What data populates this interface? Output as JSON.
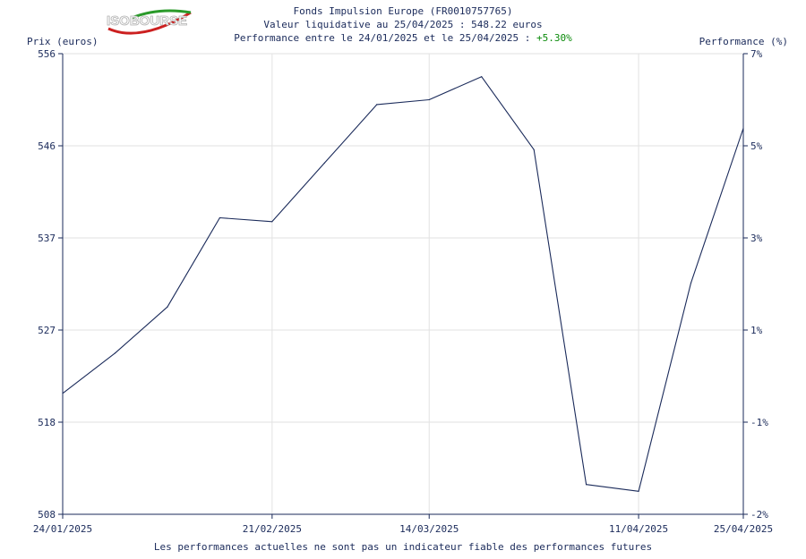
{
  "header": {
    "fund_name": "Fonds Impulsion Europe (FR0010757765)",
    "nav_text": "Valeur liquidative au 25/04/2025 : 548.22 euros",
    "perf_prefix": "Performance entre le 24/01/2025 et le 25/04/2025 : ",
    "perf_value": "+5.30%",
    "perf_color": "#0a8a0a"
  },
  "logo": {
    "text": "ISOBOURSE"
  },
  "footer": {
    "disclaimer": "Les performances actuelles ne sont pas un indicateur fiable des performances futures"
  },
  "chart_data": {
    "type": "line",
    "ylabel_left": "Prix (euros)",
    "ylabel_right": "Performance (%)",
    "x_ticks": [
      "24/01/2025",
      "21/02/2025",
      "14/03/2025",
      "11/04/2025",
      "25/04/2025"
    ],
    "y_left_ticks": [
      "556",
      "546",
      "537",
      "527",
      "518",
      "508"
    ],
    "y_right_ticks": [
      "7%",
      "5%",
      "3%",
      "1%",
      "-1%",
      "-2%"
    ],
    "ylim": [
      508,
      556
    ],
    "xlim": [
      "2025-01-24",
      "2025-04-25"
    ],
    "grid": true,
    "line_color": "#1a2a5a",
    "series": [
      {
        "x": [
          "2025-01-24",
          "2025-01-31",
          "2025-02-07",
          "2025-02-14",
          "2025-02-21",
          "2025-02-28",
          "2025-03-07",
          "2025-03-14",
          "2025-03-21",
          "2025-03-28",
          "2025-04-04",
          "2025-04-11",
          "2025-04-18",
          "2025-04-25"
        ],
        "values": [
          520.6,
          524.8,
          529.6,
          538.9,
          538.5,
          544.6,
          550.7,
          551.2,
          553.6,
          546.0,
          511.1,
          510.4,
          532.1,
          548.22
        ]
      }
    ]
  }
}
